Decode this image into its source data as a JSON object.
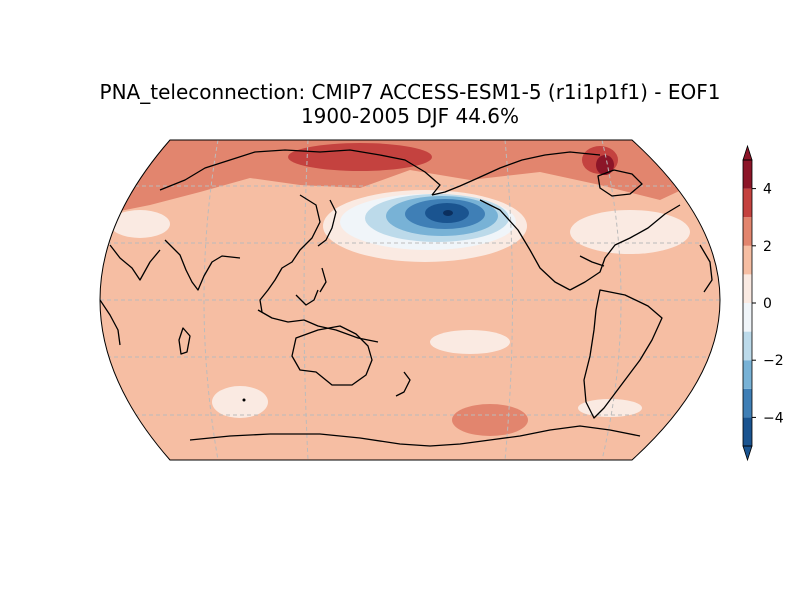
{
  "title": {
    "line1": "PNA_teleconnection: CMIP7 ACCESS-ESM1-5 (r1i1p1f1) - EOF1",
    "line2": "1900-2005 DJF 44.6%"
  },
  "colorbar": {
    "levels": [
      -5,
      -4,
      -3,
      -2,
      -1,
      0,
      1,
      2,
      3,
      4,
      5
    ],
    "tick_labels": [
      "−4",
      "−2",
      "0",
      "2",
      "4"
    ],
    "tick_values": [
      -4,
      -2,
      0,
      2,
      4
    ],
    "colors": [
      "#1a5490",
      "#3f7fb6",
      "#78b2d6",
      "#bcdaea",
      "#f0f5f9",
      "#faeae2",
      "#f6bea3",
      "#e2856e",
      "#c4423f",
      "#8c1528"
    ],
    "extend": "both"
  },
  "map": {
    "projection": "robinson",
    "central_longitude": 180,
    "gridlines": true,
    "coastlines": true,
    "background_color": "#f6bea3"
  }
}
